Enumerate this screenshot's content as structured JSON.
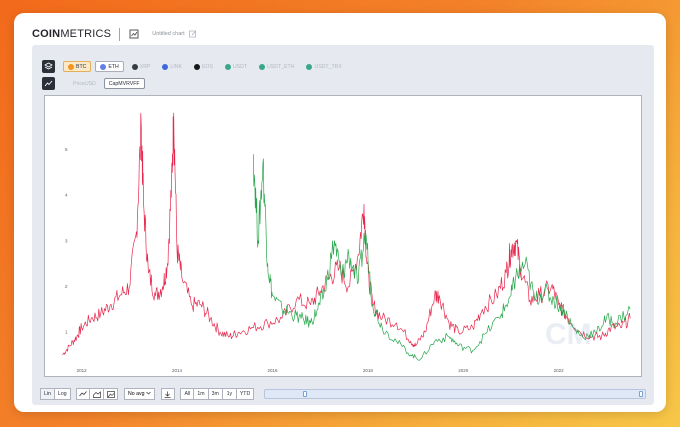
{
  "header": {
    "logo_bold": "COIN",
    "logo_light": "METRICS",
    "doc_title": "Untitled chart"
  },
  "assets": [
    {
      "label": "BTC",
      "color": "#f7931a",
      "selected": true
    },
    {
      "label": "ETH",
      "color": "#627eea",
      "selected": true
    },
    {
      "label": "XRP",
      "color": "#23292f",
      "selected": false
    },
    {
      "label": "LINK",
      "color": "#2a5ada",
      "selected": false
    },
    {
      "label": "EOS",
      "color": "#000000",
      "selected": false
    },
    {
      "label": "USDT",
      "color": "#26a17b",
      "selected": false
    },
    {
      "label": "USDT_ETH",
      "color": "#26a17b",
      "selected": false
    },
    {
      "label": "USDT_TRX",
      "color": "#26a17b",
      "selected": false
    }
  ],
  "metrics": {
    "faded_label": "PriceUSD",
    "selected_label": "CapMVRVFF"
  },
  "chart_data": {
    "type": "line",
    "y_ticks": [
      "1",
      "2",
      "3",
      "4",
      "5"
    ],
    "x_ticks": [
      "2012",
      "2014",
      "2016",
      "2018",
      "2020",
      "2022"
    ],
    "ylim": [
      0.3,
      6.0
    ],
    "xlim": [
      2011.4,
      2023.6
    ],
    "grid": false,
    "series": [
      {
        "color": "#e8294e",
        "x": [
          2011.6,
          2011.75,
          2011.9,
          2012.0,
          2012.2,
          2012.4,
          2012.6,
          2012.8,
          2013.0,
          2013.15,
          2013.25,
          2013.3,
          2013.4,
          2013.55,
          2013.7,
          2013.8,
          2013.9,
          2013.93,
          2014.0,
          2014.1,
          2014.3,
          2014.5,
          2014.7,
          2014.9,
          2015.1,
          2015.3,
          2015.6,
          2015.9,
          2016.2,
          2016.5,
          2016.8,
          2017.0,
          2017.2,
          2017.4,
          2017.6,
          2017.8,
          2017.92,
          2017.98,
          2018.1,
          2018.3,
          2018.6,
          2018.9,
          2019.0,
          2019.2,
          2019.4,
          2019.5,
          2019.7,
          2019.9,
          2020.2,
          2020.4,
          2020.7,
          2020.9,
          2021.0,
          2021.1,
          2021.2,
          2021.4,
          2021.6,
          2021.85,
          2022.0,
          2022.2,
          2022.45,
          2022.7,
          2022.9,
          2023.1,
          2023.3,
          2023.5
        ],
        "values": [
          0.5,
          0.7,
          0.9,
          1.1,
          1.3,
          1.4,
          1.6,
          1.8,
          2.0,
          3.2,
          5.5,
          3.8,
          2.3,
          1.8,
          2.0,
          2.5,
          4.5,
          5.8,
          2.8,
          2.2,
          1.6,
          1.6,
          1.3,
          1.0,
          0.9,
          1.0,
          1.1,
          1.2,
          1.3,
          1.7,
          1.6,
          1.9,
          2.2,
          2.4,
          2.0,
          2.7,
          3.8,
          2.5,
          1.6,
          1.3,
          1.2,
          0.8,
          0.7,
          1.0,
          1.8,
          1.8,
          1.2,
          1.0,
          1.1,
          1.5,
          1.8,
          2.3,
          2.8,
          3.0,
          2.4,
          1.7,
          1.8,
          2.0,
          1.6,
          1.3,
          1.0,
          0.9,
          0.9,
          1.1,
          1.1,
          1.3
        ]
      },
      {
        "color": "#29a74c",
        "x": [
          2015.6,
          2015.7,
          2015.8,
          2015.9,
          2016.0,
          2016.2,
          2016.4,
          2016.6,
          2016.8,
          2016.95,
          2017.1,
          2017.3,
          2017.45,
          2017.6,
          2017.8,
          2017.95,
          2018.1,
          2018.3,
          2018.6,
          2018.9,
          2019.1,
          2019.4,
          2019.7,
          2019.9,
          2020.2,
          2020.5,
          2020.8,
          2021.0,
          2021.1,
          2021.3,
          2021.5,
          2021.7,
          2021.9,
          2022.1,
          2022.3,
          2022.5,
          2022.8,
          2023.0,
          2023.2,
          2023.5
        ],
        "values": [
          4.9,
          3.0,
          4.7,
          2.5,
          1.8,
          1.5,
          1.4,
          1.3,
          1.2,
          1.5,
          1.9,
          3.0,
          2.2,
          2.7,
          2.1,
          3.2,
          1.6,
          1.1,
          0.8,
          0.5,
          0.4,
          0.8,
          0.9,
          0.7,
          0.6,
          1.0,
          1.4,
          1.8,
          2.2,
          2.5,
          1.7,
          1.9,
          1.7,
          1.5,
          1.1,
          0.9,
          1.0,
          1.3,
          1.2,
          1.5
        ]
      }
    ]
  },
  "toolbar": {
    "scale_lin": "Lin",
    "scale_log": "Log",
    "avg_select": "No avg",
    "ranges": [
      "All",
      "1m",
      "3m",
      "1y",
      "YTD"
    ]
  }
}
